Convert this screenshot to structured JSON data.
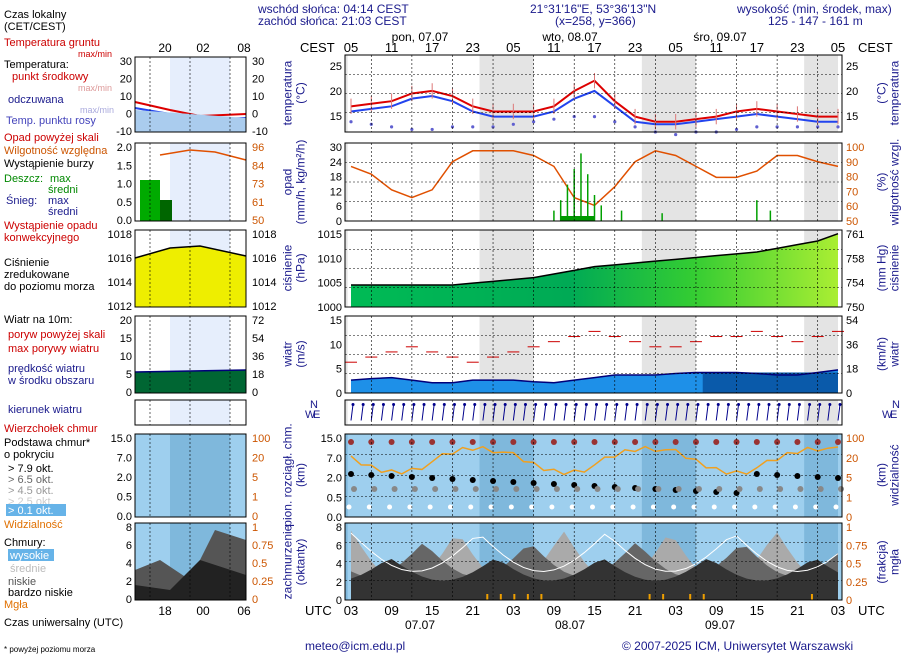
{
  "header": {
    "sunrise": "wschód słońca: 04:14 CEST",
    "sunset": "zachód słońca: 21:03 CEST",
    "coords": "21°31'16\"E, 53°36'13\"N",
    "grid": "(x=258,  y=366)",
    "elevation_label": "wysokość (min, środek, max)",
    "elevation_values": "125 - 147 - 161 m"
  },
  "legend": {
    "local_time": "Czas lokalny\n(CET/CEST)",
    "local_ticks": [
      "20",
      "02",
      "08"
    ],
    "temp_ground": "Temperatura gruntu",
    "temp_ground_maxmin": "max/min",
    "temp_label": "Temperatura:",
    "temp_mid": "punkt środkowy",
    "temp_maxmin": "max/min",
    "temp_felt": "odczuwana",
    "temp_felt_maxmin": "max/min",
    "temp_dew": "Temp. punktu rosy",
    "precip_above": "Opad powyżej skali",
    "humidity": "Wilgotność względna",
    "storm": "Wystąpienie burzy",
    "rain": "Deszcz:",
    "rain_max": "max",
    "rain_mean": "średni",
    "snow": "Śnieg:",
    "snow_max": "max",
    "snow_mean": "średni",
    "convective": "Wystąpienie opadu\nkonwekcyjnego",
    "pressure": "Ciśnienie\nzredukowane\ndo poziomu morza",
    "wind10": "Wiatr na 10m:",
    "gust_above": "poryw powyżej skali",
    "gust_max": "max porywy wiatru",
    "wind_speed": "prędkość wiatru\nw środku obszaru",
    "wind_dir": "kierunek wiatru",
    "cloud_top": "Wierzchołek chmur",
    "cloud_base": "Podstawa chmur*\no pokryciu",
    "okt": [
      "> 7.9 okt.",
      "> 6.5 okt.",
      "> 4.5 okt.",
      "> 2.5 okt.",
      "> 0.1 okt."
    ],
    "visibility": "Widzialność",
    "clouds": "Chmury:",
    "cloud_high": "wysokie",
    "cloud_mid": "średnie",
    "cloud_low": "niskie",
    "cloud_vlow": "bardzo niskie",
    "fog": "Mgła",
    "utc_label": "Czas uniwersalny (UTC)",
    "utc_ticks": [
      "18",
      "00",
      "06"
    ],
    "footnote": "* powyżej poziomu morza"
  },
  "axes": {
    "cest": "CEST",
    "utc": "UTC",
    "days_top": [
      "pon, 07.07",
      "wto, 08.07",
      "śro, 09.07"
    ],
    "days_bottom": [
      "07.07",
      "08.07",
      "09.07"
    ],
    "hours_top": [
      "05",
      "11",
      "17",
      "23",
      "05",
      "11",
      "17",
      "23",
      "05",
      "11",
      "17",
      "23",
      "05"
    ],
    "hours_bottom": [
      "03",
      "09",
      "15",
      "21",
      "03",
      "09",
      "15",
      "21",
      "03",
      "09",
      "15",
      "21",
      "03"
    ],
    "temp_left": "temperatura\n(°C)",
    "temp_right": "(°C)\ntemperatura",
    "precip_left": "opad\n(mm/h, kg/m²/h)",
    "precip_right": "(%)\nwilgotność wzgl.",
    "pressure_left": "ciśnienie\n(hPa)",
    "pressure_right": "(mm Hg)\nciśnienie",
    "wind_left": "wiatr\n(m/s)",
    "wind_right": "(km/h)\nwiatr",
    "cloudbase_left": "pion. rozciągł. chm.\n(km)",
    "cloudbase_right": "(km)\nwidzialność",
    "clouds_left": "zachmurzenie\n(oktanty)",
    "clouds_right": "(frakcja)\nmgła"
  },
  "ticks": {
    "temp": [
      "25",
      "20",
      "15"
    ],
    "precip": [
      "30",
      "24",
      "18",
      "12",
      "6",
      "0"
    ],
    "humidity": [
      "100",
      "90",
      "80",
      "70",
      "60",
      "50"
    ],
    "pressure": [
      "1015",
      "1010",
      "1005",
      "1000"
    ],
    "pressure_mm": [
      "761",
      "758",
      "754",
      "750"
    ],
    "wind": [
      "15",
      "10",
      "5",
      "0"
    ],
    "wind_kmh": [
      "54",
      "36",
      "18",
      "0"
    ],
    "cb": [
      "15.0",
      "7.0",
      "2.0",
      "0.5",
      "0.0"
    ],
    "vis": [
      "100",
      "20",
      "5",
      "1",
      "0"
    ],
    "okt": [
      "8",
      "6",
      "4",
      "2",
      "0"
    ],
    "fog": [
      "1",
      "0.75",
      "0.5",
      "0.25",
      "0"
    ],
    "leg_temp": [
      "30",
      "20",
      "10",
      "0",
      "-10"
    ],
    "leg_precip": [
      "2.0",
      "1.5",
      "1.0",
      "0.5",
      "0.0"
    ],
    "leg_hum": [
      "96",
      "84",
      "73",
      "61",
      "50"
    ],
    "leg_press": [
      "1018",
      "1016",
      "1014",
      "1012"
    ],
    "leg_wind": [
      "20",
      "15",
      "10",
      "5",
      "0"
    ],
    "leg_wind_kmh": [
      "72",
      "54",
      "36",
      "18",
      "0"
    ],
    "compass": [
      "N",
      "W",
      "E",
      "S"
    ]
  },
  "chart_data": {
    "type": "line",
    "x_hours_utc": [
      0,
      3,
      6,
      9,
      12,
      15,
      18,
      21,
      24,
      27,
      30,
      33,
      36,
      39,
      42,
      45,
      48,
      51,
      54,
      57,
      60,
      63,
      66,
      69,
      72
    ],
    "series": [
      {
        "name": "punkt środkowy",
        "values": [
          17,
          17.5,
          18,
          19.5,
          20,
          19,
          17,
          16,
          16,
          16,
          17,
          20,
          22,
          18,
          15,
          14,
          14,
          14.5,
          15,
          16,
          16.5,
          16,
          15.5,
          15,
          15
        ]
      },
      {
        "name": "odczuwana",
        "values": [
          16,
          16.5,
          17,
          18.5,
          19,
          18,
          16,
          15,
          15,
          15,
          16,
          18.5,
          20,
          17,
          14,
          13.5,
          13.5,
          14,
          14.5,
          15,
          15.5,
          15,
          14.5,
          14,
          14
        ]
      },
      {
        "name": "Temp. punktu rosy",
        "values": [
          14,
          13.5,
          13,
          12.5,
          12.5,
          13,
          13,
          13,
          13.5,
          14,
          14.5,
          15,
          15,
          14,
          13,
          12,
          11.5,
          12,
          12,
          12.5,
          13,
          13,
          13,
          13,
          13
        ]
      },
      {
        "name": "Wilgotność względna",
        "values": [
          85,
          80,
          70,
          65,
          70,
          88,
          95,
          95,
          95,
          92,
          85,
          65,
          60,
          72,
          88,
          95,
          92,
          85,
          78,
          78,
          82,
          92,
          92,
          88,
          85
        ]
      },
      {
        "name": "Ciśnienie",
        "values": [
          1001,
          1001,
          1001,
          1001,
          1001,
          1001,
          1001.5,
          1002,
          1002.5,
          1003,
          1004,
          1005,
          1006,
          1006.5,
          1007,
          1007.5,
          1008,
          1008.5,
          1009,
          1009.5,
          1010,
          1011,
          1012,
          1013,
          1015
        ]
      },
      {
        "name": "prędkość wiatru",
        "values": [
          2.5,
          2.8,
          3,
          2.5,
          2,
          2,
          2.5,
          2.5,
          2.5,
          2.2,
          2,
          2.5,
          3,
          3.5,
          3.5,
          3.5,
          3.8,
          4,
          4,
          4,
          3.8,
          3.5,
          3.5,
          4,
          4.5
        ]
      },
      {
        "name": "max porywy wiatru",
        "values": [
          6,
          7,
          8,
          9,
          8,
          7,
          6,
          7,
          8,
          9,
          10,
          11,
          12,
          11,
          10,
          9,
          9,
          10,
          11,
          11,
          12,
          11,
          10,
          11,
          12
        ]
      }
    ],
    "ylim_temp": [
      12,
      27
    ],
    "ylim_pressure": [
      995,
      1016
    ],
    "ylim_wind": [
      0,
      15
    ]
  }
}
